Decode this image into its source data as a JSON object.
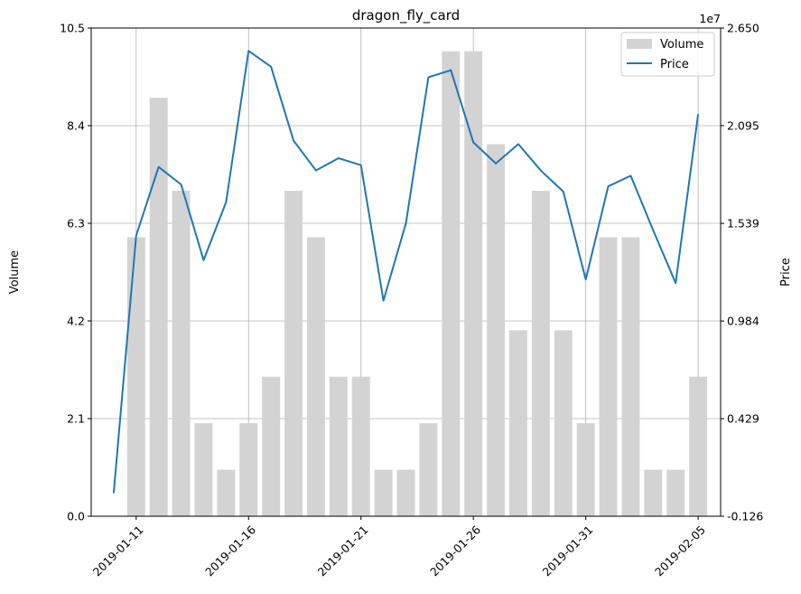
{
  "chart_data": {
    "type": "bar+line",
    "title": "dragon_fly_card",
    "xlabel": "",
    "ylabel_left": "Volume",
    "ylabel_right": "Price",
    "right_axis_offset_label": "1e7",
    "grid": true,
    "legend_position": "top-right",
    "colors": {
      "volume": "#d3d3d3",
      "price": "#1f77b4",
      "grid": "#b0b0b0"
    },
    "dates": [
      "2019-01-10",
      "2019-01-11",
      "2019-01-12",
      "2019-01-13",
      "2019-01-14",
      "2019-01-15",
      "2019-01-16",
      "2019-01-17",
      "2019-01-18",
      "2019-01-19",
      "2019-01-20",
      "2019-01-21",
      "2019-01-22",
      "2019-01-23",
      "2019-01-24",
      "2019-01-25",
      "2019-01-26",
      "2019-01-27",
      "2019-01-28",
      "2019-01-29",
      "2019-01-30",
      "2019-01-31",
      "2019-02-01",
      "2019-02-02",
      "2019-02-03",
      "2019-02-04",
      "2019-02-05"
    ],
    "xlim": [
      "2019-01-09",
      "2019-02-06"
    ],
    "x_ticks": [
      "2019-01-11",
      "2019-01-16",
      "2019-01-21",
      "2019-01-26",
      "2019-01-31",
      "2019-02-05"
    ],
    "x_tick_labels": [
      "2019-01-11",
      "2019-01-16",
      "2019-01-21",
      "2019-01-26",
      "2019-01-31",
      "2019-02-05"
    ],
    "volume_bar_dates": [
      "2019-01-11",
      "2019-01-12",
      "2019-01-13",
      "2019-01-14",
      "2019-01-15",
      "2019-01-16",
      "2019-01-17",
      "2019-01-18",
      "2019-01-19",
      "2019-01-20",
      "2019-01-21",
      "2019-01-22",
      "2019-01-23",
      "2019-01-24",
      "2019-01-25",
      "2019-01-26",
      "2019-01-27",
      "2019-01-28",
      "2019-01-29",
      "2019-01-30",
      "2019-01-31",
      "2019-02-01",
      "2019-02-02",
      "2019-02-03",
      "2019-02-04",
      "2019-02-05"
    ],
    "volume_values": [
      6,
      9,
      7,
      2,
      1,
      2,
      3,
      7,
      6,
      3,
      3,
      1,
      1,
      2,
      10,
      10,
      8,
      4,
      7,
      4,
      2,
      6,
      6,
      1,
      1,
      3
    ],
    "price_values": [
      0.005,
      1.47,
      1.86,
      1.76,
      1.33,
      1.66,
      2.52,
      2.43,
      2.01,
      1.84,
      1.91,
      1.87,
      1.1,
      1.54,
      2.37,
      2.41,
      2.0,
      1.88,
      1.99,
      1.84,
      1.72,
      1.22,
      1.75,
      1.81,
      1.5,
      1.2,
      2.16
    ],
    "ylim_left": [
      0.0,
      10.5
    ],
    "ylim_right": [
      -0.126,
      2.65
    ],
    "y_left_ticks": [
      "0.0",
      "2.1",
      "4.2",
      "6.3",
      "8.4",
      "10.5"
    ],
    "y_right_ticks": [
      "-0.126",
      "0.429",
      "0.984",
      "1.539",
      "2.095",
      "2.650"
    ],
    "legend": [
      {
        "label": "Volume",
        "kind": "bar"
      },
      {
        "label": "Price",
        "kind": "line"
      }
    ]
  }
}
